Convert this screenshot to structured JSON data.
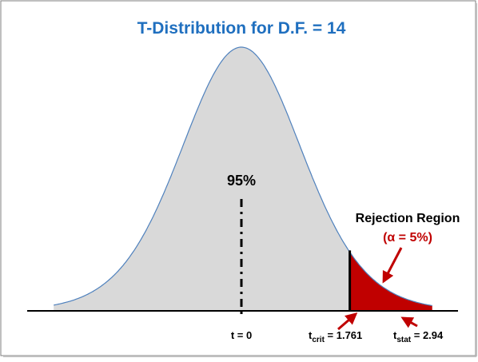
{
  "title": "T-Distribution for D.F. = 14",
  "center_label": "95%",
  "rejection": {
    "title": "Rejection Region",
    "alpha": "(α = 5%)"
  },
  "axis": {
    "t_zero": "t = 0",
    "t_crit_base": "t",
    "t_crit_sub": "crit",
    "t_crit_value": " = 1.761",
    "t_stat_base": "t",
    "t_stat_sub": "stat",
    "t_stat_value": " = 2.94"
  },
  "distribution": {
    "df": 14,
    "t_crit": 1.761,
    "t_stat": 2.94,
    "alpha": 0.05
  },
  "colors": {
    "title": "#1F6FBF",
    "curve_fill": "#D9D9D9",
    "curve_stroke": "#4F81BD",
    "rejection_fill": "#C00000",
    "alpha_text": "#C00000",
    "arrow": "#C00000",
    "text": "#000000",
    "frame": "#7F7F7F"
  }
}
